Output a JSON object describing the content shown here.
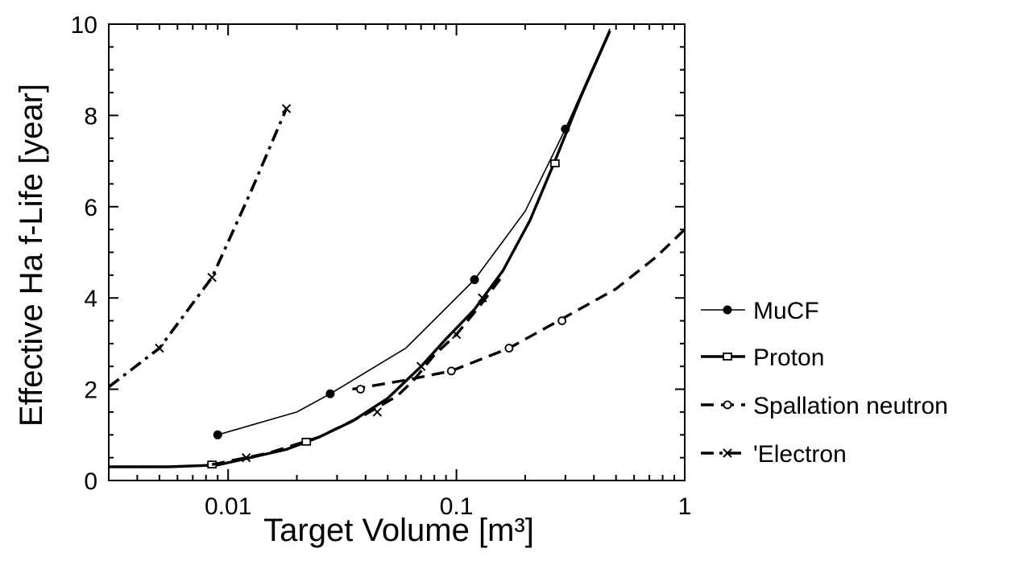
{
  "chart_data": {
    "type": "line",
    "xlabel": "Target  Volume  [m³]",
    "ylabel": "Effective Ha f-Life [year]",
    "xscale": "log",
    "xlim": [
      0.003,
      1
    ],
    "ylim": [
      0,
      10
    ],
    "x_tick_labels": [
      "0.01",
      "0.1",
      "1"
    ],
    "y_tick_labels": [
      "0",
      "2",
      "4",
      "6",
      "8",
      "10"
    ],
    "grid": false,
    "legend_position": "right",
    "series": [
      {
        "name": "MuCF",
        "line": "thin-solid",
        "marker": "filled-circle",
        "points": [
          [
            0.009,
            1.0
          ],
          [
            0.02,
            1.5
          ],
          [
            0.028,
            1.9
          ],
          [
            0.06,
            2.9
          ],
          [
            0.12,
            4.4
          ],
          [
            0.2,
            5.9
          ],
          [
            0.3,
            7.7
          ],
          [
            0.47,
            9.9
          ]
        ],
        "marker_points": [
          [
            0.009,
            1.0
          ],
          [
            0.028,
            1.9
          ],
          [
            0.12,
            4.4
          ],
          [
            0.3,
            7.7
          ]
        ]
      },
      {
        "name": "Proton",
        "line": "thick-solid",
        "marker": "open-square",
        "points": [
          [
            0.003,
            0.3
          ],
          [
            0.0055,
            0.3
          ],
          [
            0.009,
            0.34
          ],
          [
            0.012,
            0.48
          ],
          [
            0.018,
            0.68
          ],
          [
            0.025,
            0.95
          ],
          [
            0.035,
            1.3
          ],
          [
            0.05,
            1.8
          ],
          [
            0.07,
            2.5
          ],
          [
            0.09,
            3.1
          ],
          [
            0.12,
            3.75
          ],
          [
            0.16,
            4.6
          ],
          [
            0.21,
            5.7
          ],
          [
            0.27,
            7.0
          ],
          [
            0.35,
            8.4
          ],
          [
            0.47,
            9.85
          ]
        ],
        "marker_points": [
          [
            0.0085,
            0.35
          ],
          [
            0.022,
            0.85
          ],
          [
            0.27,
            6.95
          ]
        ]
      },
      {
        "name": "Spallation  neutron",
        "line": "dashed",
        "marker": "open-circle",
        "points": [
          [
            0.035,
            2.0
          ],
          [
            0.06,
            2.2
          ],
          [
            0.095,
            2.4
          ],
          [
            0.17,
            2.9
          ],
          [
            0.28,
            3.5
          ],
          [
            0.5,
            4.2
          ],
          [
            0.75,
            4.9
          ],
          [
            1.0,
            5.5
          ]
        ],
        "marker_points": [
          [
            0.038,
            2.0
          ],
          [
            0.095,
            2.4
          ],
          [
            0.17,
            2.9
          ],
          [
            0.29,
            3.5
          ]
        ]
      },
      {
        "name": "'Electron",
        "line": "dash-dot",
        "marker": "cross",
        "points": [
          [
            0.003,
            2.05
          ],
          [
            0.005,
            2.9
          ],
          [
            0.0085,
            4.45
          ],
          [
            0.0125,
            6.3
          ],
          [
            0.018,
            8.15
          ]
        ],
        "marker_points": [
          [
            0.005,
            2.9
          ],
          [
            0.0085,
            4.45
          ],
          [
            0.018,
            8.15
          ]
        ]
      },
      {
        "name": "",
        "line": "dashed",
        "marker": "cross",
        "points": [
          [
            0.0085,
            0.35
          ],
          [
            0.015,
            0.6
          ],
          [
            0.025,
            0.95
          ],
          [
            0.04,
            1.45
          ],
          [
            0.055,
            1.85
          ],
          [
            0.065,
            2.2
          ],
          [
            0.08,
            2.75
          ],
          [
            0.1,
            3.2
          ],
          [
            0.13,
            3.9
          ],
          [
            0.16,
            4.5
          ]
        ],
        "marker_points": [
          [
            0.012,
            0.5
          ],
          [
            0.045,
            1.5
          ],
          [
            0.07,
            2.5
          ],
          [
            0.1,
            3.2
          ],
          [
            0.13,
            4.0
          ]
        ]
      }
    ]
  }
}
